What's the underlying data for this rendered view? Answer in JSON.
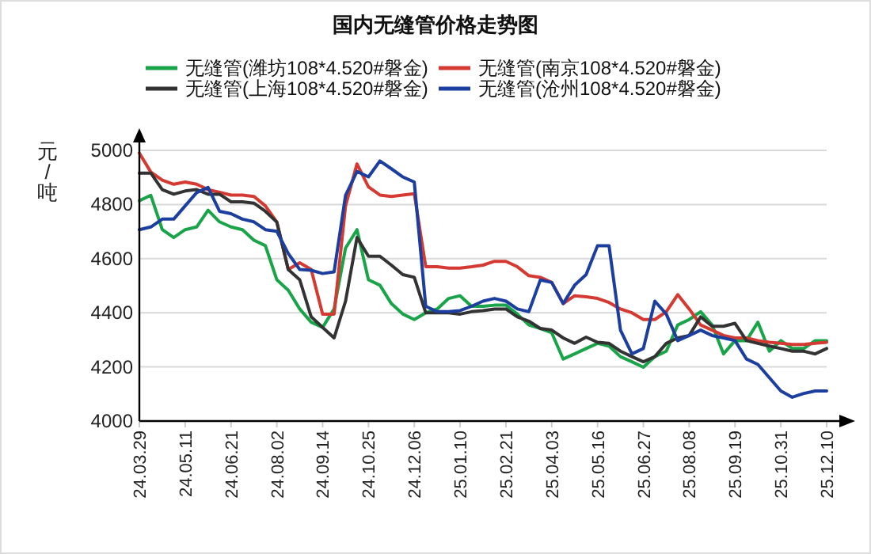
{
  "chart_data": {
    "type": "line",
    "title": "国内无缝管价格走势图",
    "ylabel": "元/吨",
    "categories": [
      "24.03.29",
      null,
      null,
      null,
      "24.05.11",
      null,
      null,
      null,
      "24.06.21",
      null,
      null,
      null,
      "24.08.02",
      null,
      null,
      null,
      "24.09.14",
      null,
      null,
      null,
      "24.10.25",
      null,
      null,
      null,
      "24.12.06",
      null,
      null,
      null,
      "25.01.10",
      null,
      null,
      null,
      "25.02.21",
      null,
      null,
      null,
      "25.04.03",
      null,
      null,
      null,
      "25.05.16",
      null,
      null,
      null,
      "25.06.27",
      null,
      null,
      null,
      "25.08.08",
      null,
      null,
      null,
      "25.09.19",
      null,
      null,
      null,
      "25.10.31",
      null,
      null,
      null,
      "25.12.10"
    ],
    "series": [
      {
        "name": "无缝管(潍坊108*4.520#磐金)",
        "color": "#1aa44a",
        "values": [
          4814,
          4834,
          4707,
          4678,
          4707,
          4717,
          4779,
          4736,
          4717,
          4707,
          4668,
          4648,
          4522,
          4483,
          4414,
          4365,
          4346,
          4414,
          4639,
          4707,
          4522,
          4502,
          4434,
          4395,
          4375,
          4400,
          4414,
          4453,
          4463,
          4424,
          4424,
          4428,
          4428,
          4395,
          4355,
          4342,
          4326,
          4229,
          4248,
          4268,
          4287,
          4277,
          4238,
          4219,
          4199,
          4238,
          4258,
          4355,
          4375,
          4404,
          4355,
          4248,
          4297,
          4297,
          4365,
          4258,
          4297,
          4268,
          4268,
          4297,
          4297
        ]
      },
      {
        "name": "无缝管(南京108*4.520#磐金)",
        "color": "#d43a32",
        "values": [
          4990,
          4920,
          4890,
          4875,
          4883,
          4875,
          4855,
          4845,
          4835,
          4835,
          4830,
          4795,
          4735,
          4560,
          4585,
          4560,
          4395,
          4395,
          4795,
          4950,
          4865,
          4835,
          4830,
          4835,
          4840,
          4570,
          4570,
          4565,
          4565,
          4570,
          4576,
          4590,
          4590,
          4570,
          4537,
          4531,
          4512,
          4434,
          4463,
          4459,
          4453,
          4438,
          4414,
          4400,
          4375,
          4375,
          4404,
          4467,
          4414,
          4355,
          4336,
          4316,
          4307,
          4307,
          4297,
          4291,
          4287,
          4283,
          4283,
          4287,
          4291
        ]
      },
      {
        "name": "无缝管(上海108*4.520#磐金)",
        "color": "#333333",
        "values": [
          4916,
          4916,
          4855,
          4838,
          4850,
          4855,
          4838,
          4838,
          4810,
          4810,
          4805,
          4775,
          4735,
          4560,
          4522,
          4385,
          4346,
          4307,
          4443,
          4678,
          4609,
          4609,
          4576,
          4541,
          4531,
          4400,
          4400,
          4400,
          4395,
          4404,
          4408,
          4414,
          4414,
          4385,
          4369,
          4342,
          4336,
          4307,
          4287,
          4310,
          4291,
          4287,
          4258,
          4238,
          4219,
          4238,
          4287,
          4307,
          4316,
          4385,
          4350,
          4350,
          4361,
          4297,
          4287,
          4277,
          4268,
          4258,
          4258,
          4248,
          4268
        ]
      },
      {
        "name": "无缝管(沧州108*4.520#磐金)",
        "color": "#1c3f9f",
        "values": [
          4707,
          4717,
          4746,
          4746,
          4795,
          4844,
          4863,
          4775,
          4766,
          4746,
          4736,
          4707,
          4701,
          4619,
          4560,
          4557,
          4545,
          4551,
          4834,
          4922,
          4902,
          4961,
          4932,
          4902,
          4883,
          4424,
          4404,
          4404,
          4408,
          4424,
          4443,
          4453,
          4443,
          4414,
          4404,
          4521,
          4512,
          4434,
          4502,
          4541,
          4648,
          4648,
          4336,
          4248,
          4268,
          4443,
          4395,
          4297,
          4316,
          4336,
          4316,
          4307,
          4297,
          4229,
          4209,
          4160,
          4111,
          4088,
          4102,
          4111,
          4111
        ]
      }
    ],
    "ylim": [
      4000,
      5000
    ],
    "yticks": [
      4000,
      4200,
      4400,
      4600,
      4800,
      5000
    ],
    "grid": "y",
    "legend": "top",
    "marker": "none",
    "line_style": "solid"
  }
}
